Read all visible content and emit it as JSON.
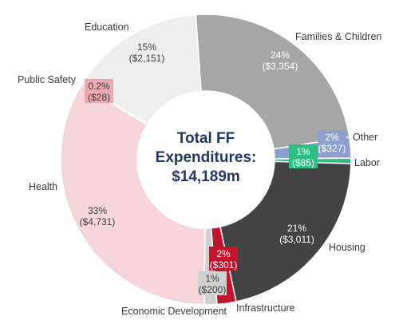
{
  "chart_data": {
    "type": "pie",
    "center_title": [
      "Total FF",
      "Expenditures:",
      "$14,189m"
    ],
    "slices": [
      {
        "name": "Families & Children",
        "pct": "24%",
        "amount": "($3,354)",
        "value": 3354,
        "color": "#a6a6a6"
      },
      {
        "name": "Other",
        "pct": "2%",
        "amount": "($327)",
        "value": 327,
        "color": "#8ea0cc"
      },
      {
        "name": "Labor",
        "pct": "1%",
        "amount": "($85)",
        "value": 85,
        "color": "#2fbf85"
      },
      {
        "name": "Housing",
        "pct": "21%",
        "amount": "($3,011)",
        "value": 3011,
        "color": "#434343"
      },
      {
        "name": "Infrastructure",
        "pct": "2%",
        "amount": "($301)",
        "value": 301,
        "color": "#c0172f"
      },
      {
        "name": "Economic Development",
        "pct": "1%",
        "amount": "($200)",
        "value": 200,
        "color": "#d0d0d0"
      },
      {
        "name": "Health",
        "pct": "33%",
        "amount": "($4,731)",
        "value": 4731,
        "color": "#f6d6da"
      },
      {
        "name": "Public Safety",
        "pct": "0.2%",
        "amount": "($28)",
        "value": 28,
        "color": "#eaa9b0"
      },
      {
        "name": "Education",
        "pct": "15%",
        "amount": "($2,151)",
        "value": 2151,
        "color": "#ededed"
      }
    ]
  }
}
